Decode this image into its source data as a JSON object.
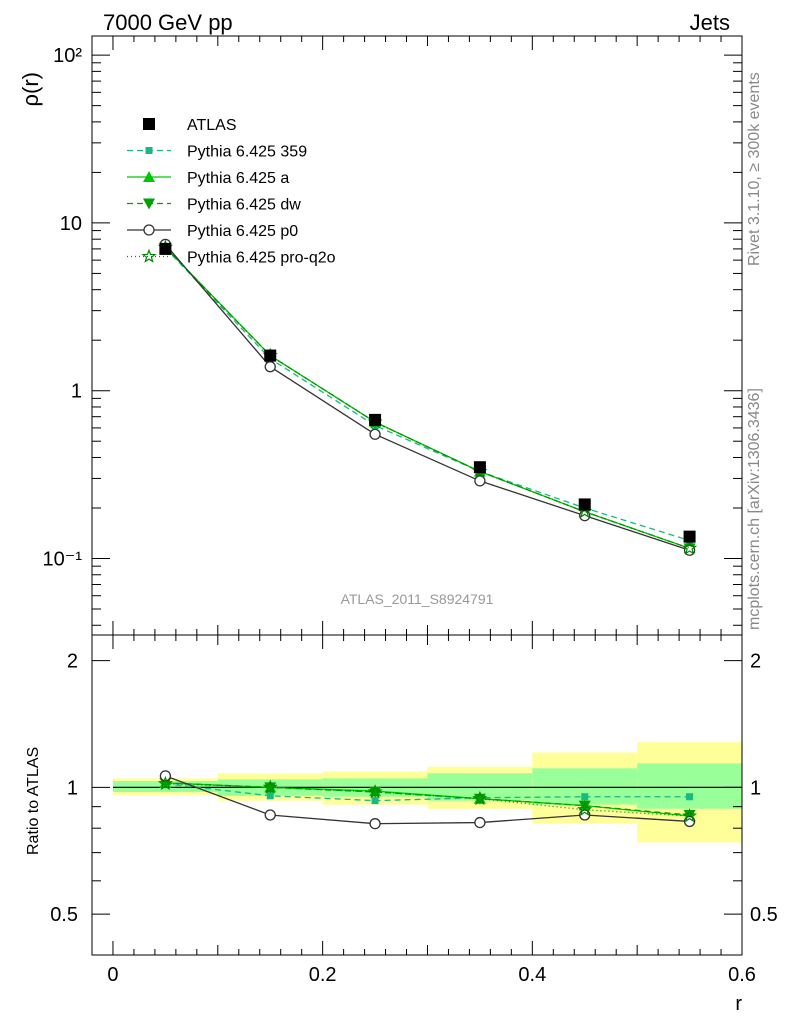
{
  "header": {
    "left": "7000 GeV pp",
    "right": "Jets"
  },
  "side_text": {
    "rivet": "Rivet 3.1.10, ≥ 300k events",
    "mcplots": "mcplots.cern.ch [arXiv:1306.3436]"
  },
  "chart_data": [
    {
      "type": "line",
      "panel": "main",
      "ylabel": "ρ(r)",
      "yscale": "log",
      "ylim": [
        0.035,
        130
      ],
      "xlim": [
        -0.02,
        0.6
      ],
      "ytick_labels": [
        "10⁻¹",
        "1",
        "10",
        "10²"
      ],
      "ytick_values": [
        0.1,
        1,
        10,
        100
      ],
      "watermark": "ATLAS_2011_S8924791",
      "x": [
        0.05,
        0.15,
        0.25,
        0.35,
        0.45,
        0.55
      ],
      "series": [
        {
          "name": "ATLAS",
          "values": [
            7.0,
            1.62,
            0.67,
            0.35,
            0.21,
            0.135
          ],
          "color": "#000000",
          "marker": "square"
        },
        {
          "name": "Pythia 6.425 359",
          "values": [
            7.1,
            1.55,
            0.62,
            0.33,
            0.2,
            0.128
          ],
          "color": "#1ab883",
          "marker": "square-small",
          "dash": "6,4"
        },
        {
          "name": "Pythia 6.425 a",
          "values": [
            7.15,
            1.62,
            0.65,
            0.33,
            0.19,
            0.115
          ],
          "color": "#00c800",
          "marker": "triangle-up"
        },
        {
          "name": "Pythia 6.425 dw",
          "values": [
            7.15,
            1.62,
            0.65,
            0.33,
            0.19,
            0.115
          ],
          "color": "#00a000",
          "marker": "triangle-down",
          "dash": "6,4"
        },
        {
          "name": "Pythia 6.425 p0",
          "values": [
            7.45,
            1.39,
            0.55,
            0.29,
            0.18,
            0.112
          ],
          "color": "#333333",
          "marker": "circle-open"
        },
        {
          "name": "Pythia 6.425 pro-q2o",
          "values": [
            7.15,
            1.62,
            0.65,
            0.33,
            0.19,
            0.115
          ],
          "color": "#008800",
          "marker": "star-open",
          "dash": "1,3"
        }
      ]
    },
    {
      "type": "line",
      "panel": "ratio",
      "xlabel": "r",
      "ylabel": "Ratio to ATLAS",
      "ylim": [
        0.4,
        2.3
      ],
      "xlim": [
        -0.02,
        0.6
      ],
      "xtick_labels": [
        "0",
        "0.2",
        "0.4",
        "0.6"
      ],
      "xtick_values": [
        0,
        0.2,
        0.4,
        0.6
      ],
      "ytick_labels": [
        "0.5",
        "1",
        "2"
      ],
      "ytick_values": [
        0.5,
        1,
        2
      ],
      "bins": [
        [
          0.0,
          0.1
        ],
        [
          0.1,
          0.2
        ],
        [
          0.2,
          0.3
        ],
        [
          0.3,
          0.4
        ],
        [
          0.4,
          0.5
        ],
        [
          0.5,
          0.6
        ]
      ],
      "band_stat": [
        [
          0.975,
          1.035
        ],
        [
          0.955,
          1.045
        ],
        [
          0.95,
          1.05
        ],
        [
          0.93,
          1.08
        ],
        [
          0.91,
          1.11
        ],
        [
          0.89,
          1.14
        ]
      ],
      "band_total": [
        [
          0.96,
          1.05
        ],
        [
          0.93,
          1.08
        ],
        [
          0.91,
          1.09
        ],
        [
          0.89,
          1.12
        ],
        [
          0.82,
          1.21
        ],
        [
          0.74,
          1.28
        ]
      ],
      "x": [
        0.05,
        0.15,
        0.25,
        0.35,
        0.45,
        0.55
      ],
      "series": [
        {
          "name": "Pythia 6.425 359",
          "values": [
            1.02,
            0.955,
            0.93,
            0.945,
            0.95,
            0.95
          ],
          "color": "#1ab883",
          "marker": "square-small",
          "dash": "6,4"
        },
        {
          "name": "Pythia 6.425 a",
          "values": [
            1.025,
            1.0,
            0.98,
            0.94,
            0.905,
            0.855
          ],
          "color": "#00c800",
          "marker": "triangle-up"
        },
        {
          "name": "Pythia 6.425 dw",
          "values": [
            1.025,
            1.0,
            0.975,
            0.94,
            0.905,
            0.86
          ],
          "color": "#00a000",
          "marker": "triangle-down",
          "dash": "6,4"
        },
        {
          "name": "Pythia 6.425 p0",
          "values": [
            1.065,
            0.86,
            0.82,
            0.825,
            0.86,
            0.83
          ],
          "color": "#333333",
          "marker": "circle-open"
        },
        {
          "name": "Pythia 6.425 pro-q2o",
          "values": [
            1.02,
            1.0,
            0.975,
            0.94,
            0.885,
            0.855
          ],
          "color": "#008800",
          "marker": "star-open",
          "dash": "1,3"
        }
      ]
    }
  ],
  "colors": {
    "band_stat": "#99ff99",
    "band_total": "#ffff99",
    "reference": "#000000"
  }
}
